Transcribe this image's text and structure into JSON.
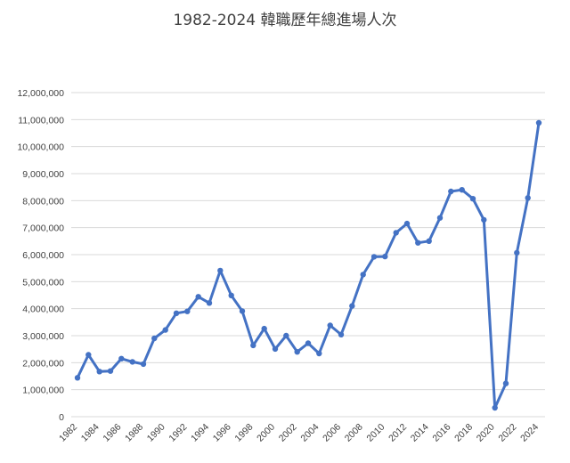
{
  "chart_data": {
    "type": "line",
    "title": "1982-2024 韓職歷年總進場人次",
    "xlabel": "",
    "ylabel": "",
    "x": [
      1982,
      1983,
      1984,
      1985,
      1986,
      1987,
      1988,
      1989,
      1990,
      1991,
      1992,
      1993,
      1994,
      1995,
      1996,
      1997,
      1998,
      1999,
      2000,
      2001,
      2002,
      2003,
      2004,
      2005,
      2006,
      2007,
      2008,
      2009,
      2010,
      2011,
      2012,
      2013,
      2014,
      2015,
      2016,
      2017,
      2018,
      2019,
      2020,
      2021,
      2022,
      2023,
      2024
    ],
    "x_tick_labels": [
      "1982",
      "1984",
      "1986",
      "1988",
      "1990",
      "1992",
      "1994",
      "1996",
      "1998",
      "2000",
      "2002",
      "2004",
      "2006",
      "2008",
      "2010",
      "2012",
      "2014",
      "2016",
      "2018",
      "2020",
      "2022",
      "2024"
    ],
    "series": [
      {
        "values": [
          1440000,
          2290000,
          1670000,
          1690000,
          2150000,
          2030000,
          1950000,
          2900000,
          3210000,
          3830000,
          3900000,
          4440000,
          4210000,
          5410000,
          4490000,
          3910000,
          2640000,
          3260000,
          2510000,
          3000000,
          2400000,
          2720000,
          2340000,
          3380000,
          3040000,
          4100000,
          5260000,
          5920000,
          5930000,
          6810000,
          7150000,
          6440000,
          6500000,
          7360000,
          8340000,
          8400000,
          8070000,
          7290000,
          330000,
          1230000,
          6070000,
          8100000,
          10880000
        ],
        "color": "#4472c4"
      }
    ],
    "ylim": [
      0,
      12000000
    ],
    "y_ticks": [
      0,
      1000000,
      2000000,
      3000000,
      4000000,
      5000000,
      6000000,
      7000000,
      8000000,
      9000000,
      10000000,
      11000000,
      12000000
    ],
    "y_tick_labels": [
      "0",
      "1,000,000",
      "2,000,000",
      "3,000,000",
      "4,000,000",
      "5,000,000",
      "6,000,000",
      "7,000,000",
      "8,000,000",
      "9,000,000",
      "10,000,000",
      "11,000,000",
      "12,000,000"
    ],
    "grid": true,
    "legend": "none"
  }
}
